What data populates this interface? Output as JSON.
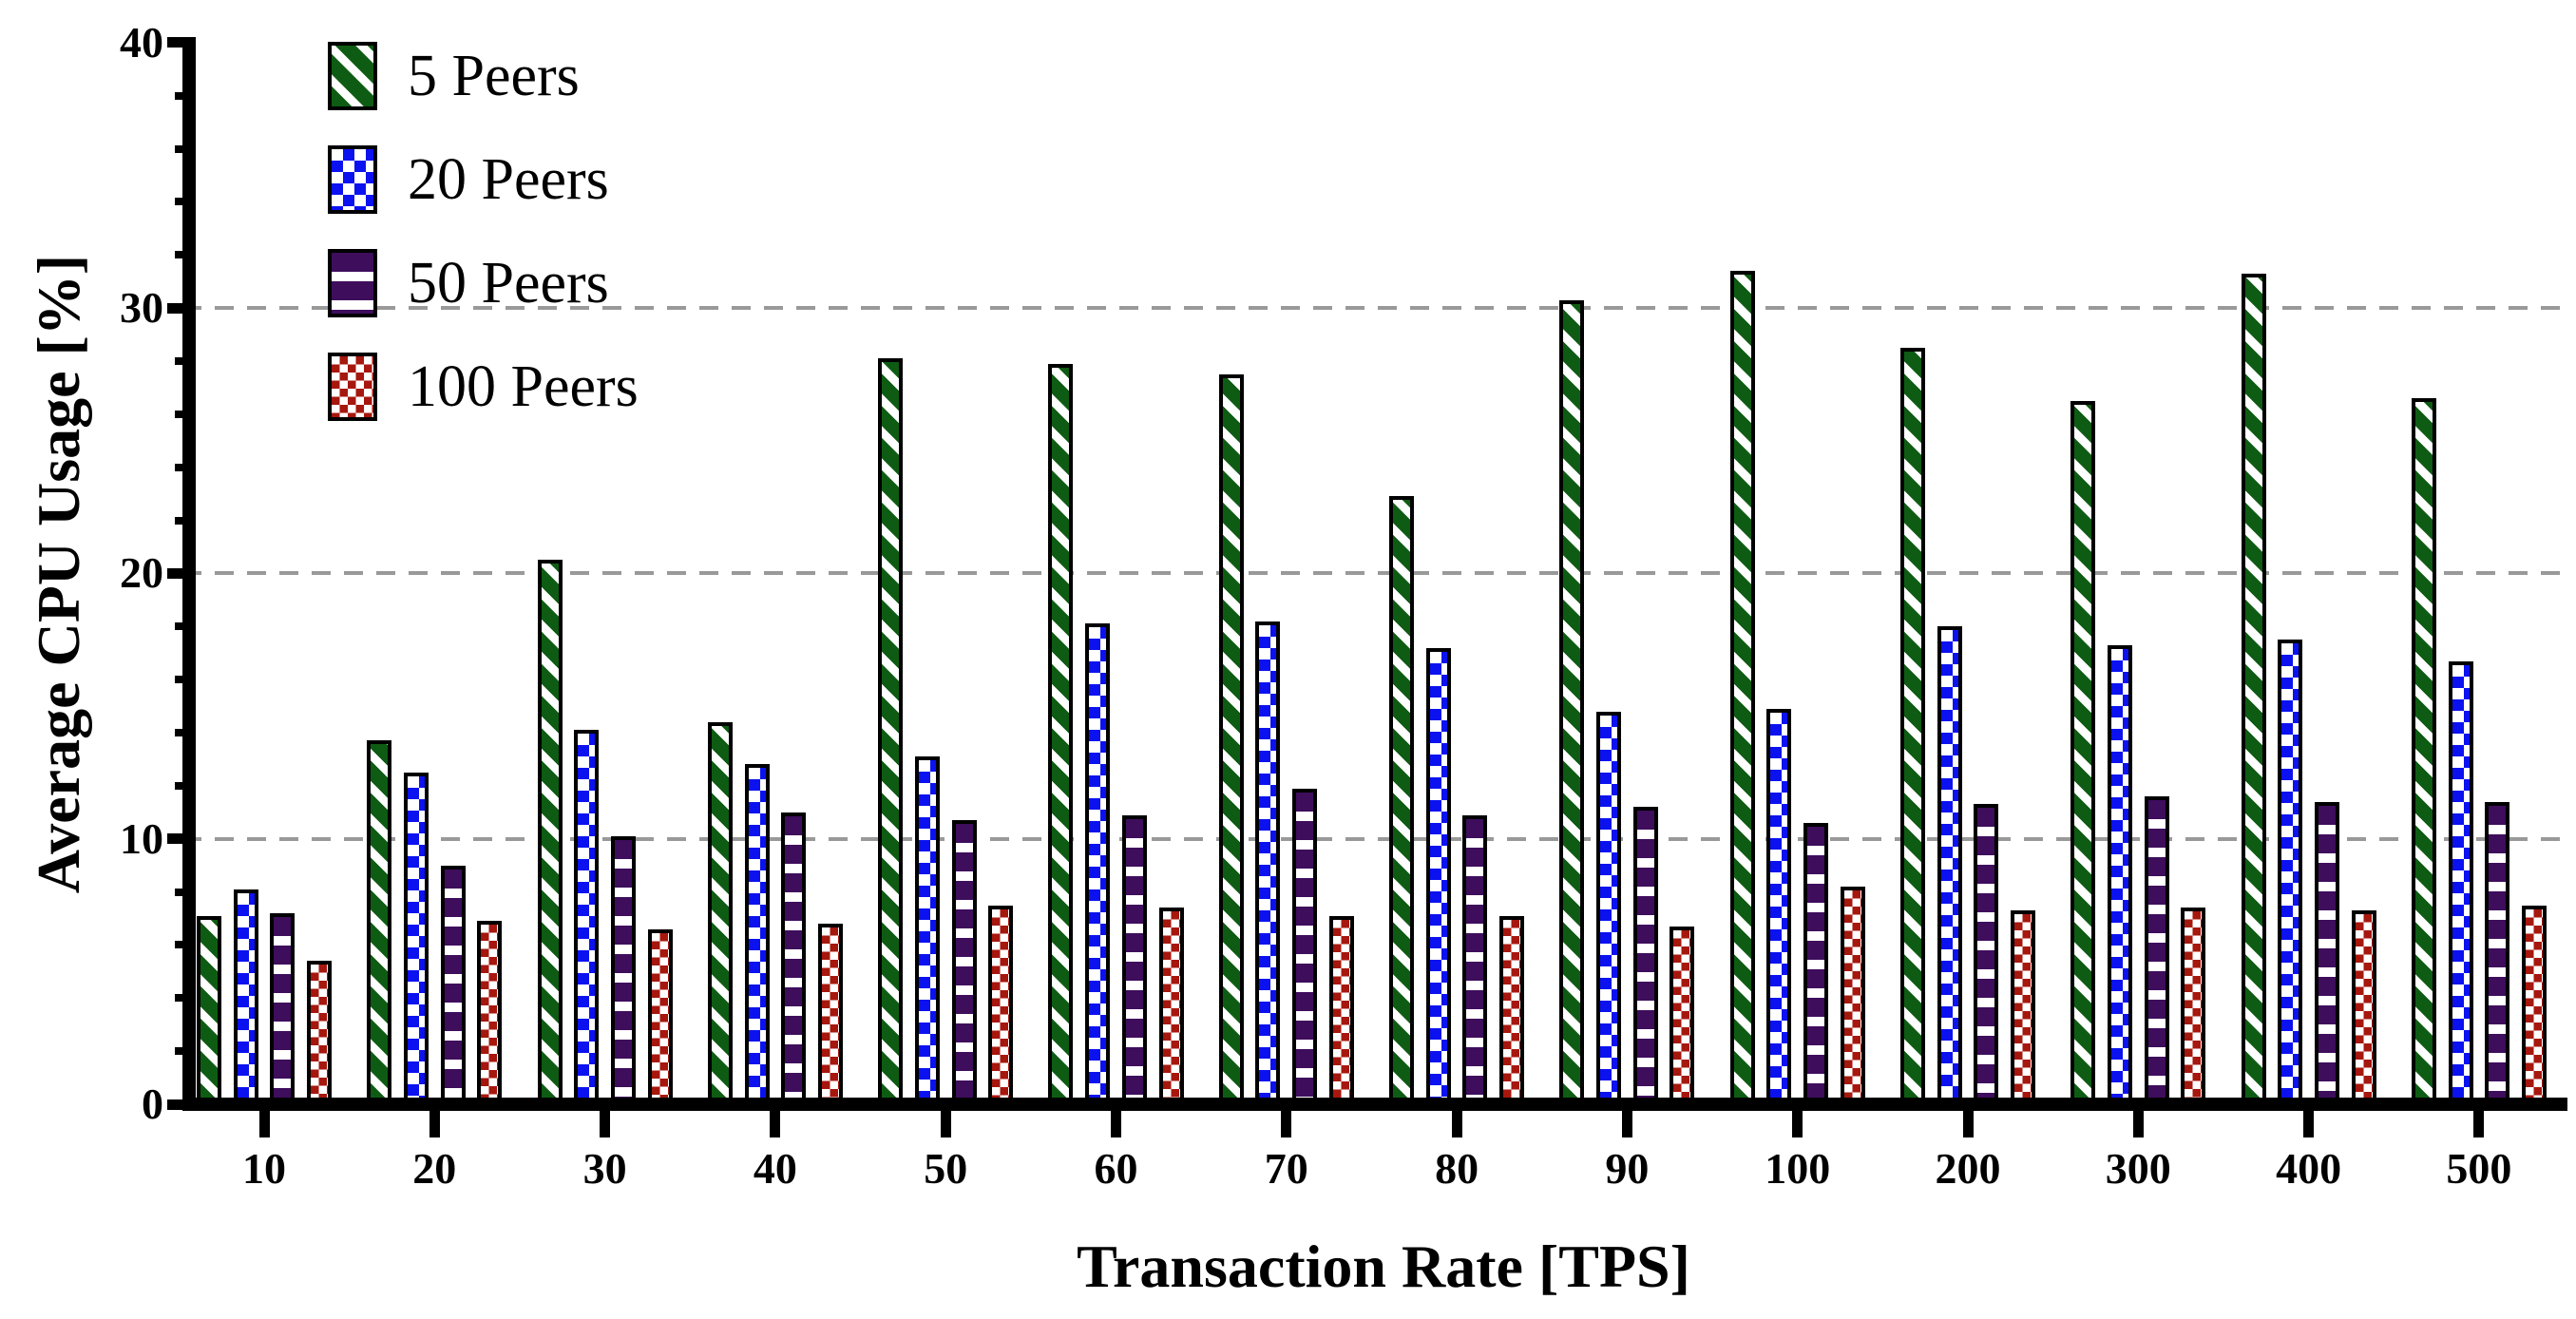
{
  "chart_data": {
    "type": "bar",
    "title": "",
    "xlabel": "Transaction Rate [TPS]",
    "ylabel": "Average CPU Usage [%]",
    "categories": [
      "10",
      "20",
      "30",
      "40",
      "50",
      "60",
      "70",
      "80",
      "90",
      "100",
      "200",
      "300",
      "400",
      "500"
    ],
    "series": [
      {
        "name": "5 Peers",
        "color": "#0e5c13",
        "pattern": "diagonal-stripes",
        "values": [
          7.1,
          13.7,
          20.5,
          14.4,
          28.1,
          27.9,
          27.5,
          22.9,
          30.3,
          31.4,
          28.5,
          26.5,
          31.3,
          26.6
        ]
      },
      {
        "name": "20 Peers",
        "color": "#0b12ef",
        "pattern": "checkerboard-large",
        "values": [
          8.1,
          12.5,
          14.1,
          12.8,
          13.1,
          18.1,
          18.2,
          17.2,
          14.8,
          14.9,
          18.0,
          17.3,
          17.5,
          16.7
        ]
      },
      {
        "name": "50 Peers",
        "color": "#3e0d5c",
        "pattern": "horizontal-stripes",
        "values": [
          7.2,
          9.0,
          10.1,
          11.0,
          10.7,
          10.9,
          11.9,
          10.9,
          11.2,
          10.6,
          11.3,
          11.6,
          11.4,
          11.4
        ]
      },
      {
        "name": "100 Peers",
        "color": "#a6170e",
        "pattern": "checkerboard-small",
        "values": [
          5.4,
          6.9,
          6.6,
          6.8,
          7.5,
          7.4,
          7.1,
          7.1,
          6.7,
          8.2,
          7.3,
          7.4,
          7.3,
          7.5
        ]
      }
    ],
    "ylim": [
      0,
      40
    ],
    "yticks": [
      0,
      10,
      20,
      30,
      40
    ],
    "minor_tick_step": 2,
    "gridlines": [
      10,
      20,
      30
    ],
    "grid_on": true,
    "grid_color": "#999999",
    "axis_color": "#000000",
    "legend_position": "top-left"
  }
}
